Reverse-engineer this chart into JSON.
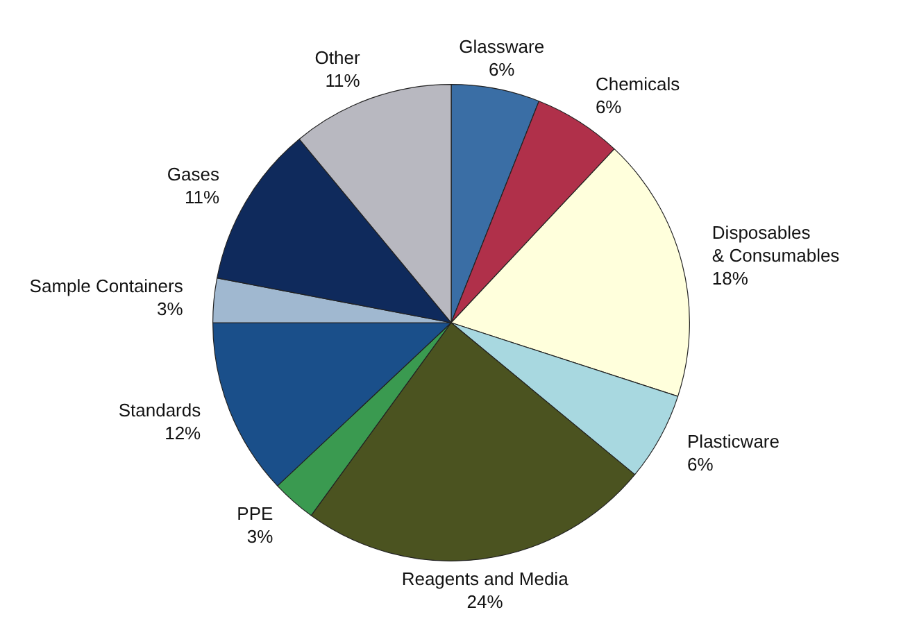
{
  "chart_data": {
    "type": "pie",
    "categories": [
      "Glassware",
      "Chemicals",
      "Disposables & Consumables",
      "Plasticware",
      "Reagents and Media",
      "PPE",
      "Standards",
      "Sample Containers",
      "Gases",
      "Other"
    ],
    "values": [
      6,
      6,
      18,
      6,
      24,
      3,
      12,
      3,
      11,
      11
    ],
    "value_labels": [
      "6%",
      "6%",
      "18%",
      "6%",
      "24%",
      "3%",
      "12%",
      "3%",
      "11%",
      "11%"
    ],
    "colors": [
      "#3a6ea5",
      "#b0304a",
      "#ffffdc",
      "#a8d8e0",
      "#4b5320",
      "#3a9a50",
      "#1a4f8a",
      "#a0b8d0",
      "#0f2a5c",
      "#b8b8c0"
    ]
  }
}
